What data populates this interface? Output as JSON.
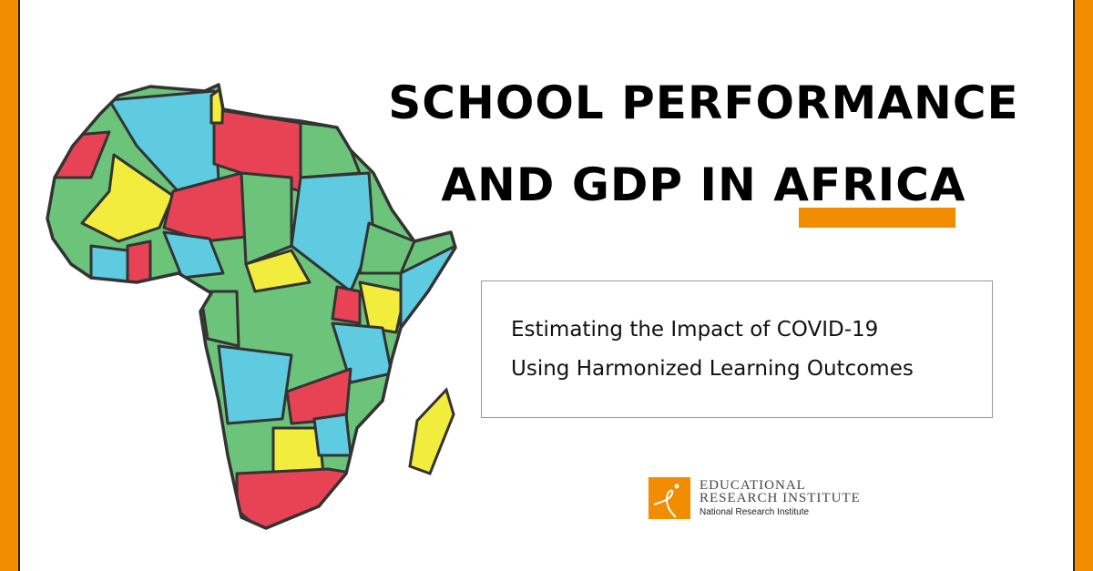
{
  "title": {
    "line1": "SCHOOL PERFORMANCE",
    "line2": "AND GDP IN AFRICA"
  },
  "subtitle": {
    "line1": "Estimating the Impact of COVID-19",
    "line2": "Using Harmonized Learning Outcomes"
  },
  "logo": {
    "line1": "EDUCATIONAL",
    "line2": "RESEARCH INSTITUTE",
    "line3": "National Research Institute"
  },
  "colors": {
    "accent": "#f28c00",
    "map_blue": "#5ecbe0",
    "map_green": "#6cc47a",
    "map_red": "#e84255",
    "map_yellow": "#f2ec3c",
    "outline": "#333333"
  },
  "icons": {
    "map": "africa-map-illustration",
    "logo": "educational-research-institute-logo"
  }
}
